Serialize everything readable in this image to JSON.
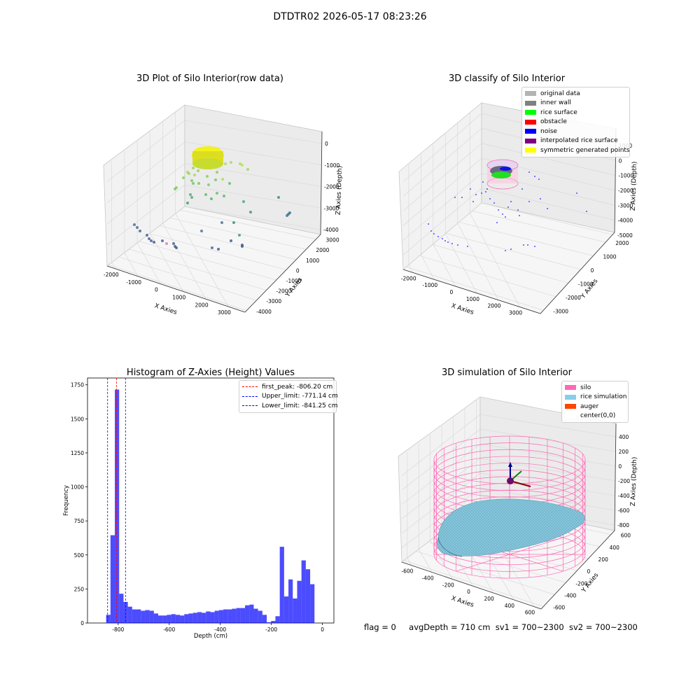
{
  "figure": {
    "title": "DTDTR02 2026-05-17 08:23:26",
    "status": {
      "flag": "flag = 0",
      "avg_depth": "avgDepth = 710 cm",
      "sv1": "sv1 = 700~2300",
      "sv2": "sv2 = 700~2300"
    }
  },
  "chart_data": [
    {
      "type": "scatter3d",
      "title": "3D Plot of Silo Interior(row data)",
      "xlabel": "X Axies",
      "ylabel": "Y Axies",
      "zlabel": "Z Axies (Depth)",
      "x_ticks": [
        "-2000",
        "-1000",
        "0",
        "1000",
        "2000",
        "3000"
      ],
      "y_ticks": [
        "3000",
        "2000",
        "1000",
        "0",
        "-1000",
        "-2000",
        "-3000",
        "-4000"
      ],
      "z_ticks": [
        "0",
        "-1000",
        "-2000",
        "-3000",
        "-4000"
      ],
      "xlim": [
        -2400,
        3500
      ],
      "ylim": [
        -4000,
        3200
      ],
      "zlim": [
        -4500,
        0
      ],
      "grid": true,
      "colormap": "viridis (by depth)"
    },
    {
      "type": "scatter3d",
      "title": "3D classify of Silo Interior",
      "xlabel": "X Axies",
      "ylabel": "Y Axies",
      "zlabel": "Z Axies (Depth)",
      "x_ticks": [
        "-2000",
        "-1000",
        "0",
        "1000",
        "2000",
        "3000"
      ],
      "y_ticks": [
        "2000",
        "1000",
        "0",
        "-1000",
        "-2000",
        "-3000"
      ],
      "z_ticks": [
        "1000",
        "0",
        "-1000",
        "-2000",
        "-3000",
        "-4000",
        "-5000"
      ],
      "legend": [
        {
          "label": "original data",
          "color": "#b3b3b3"
        },
        {
          "label": "inner wall",
          "color": "#808080"
        },
        {
          "label": "rice surface",
          "color": "#00ff00"
        },
        {
          "label": "obstacle",
          "color": "#ff0000"
        },
        {
          "label": "noise",
          "color": "#0000ff"
        },
        {
          "label": "interpolated rice surface",
          "color": "#800080"
        },
        {
          "label": "symmetric generated points",
          "color": "#ffff00"
        }
      ],
      "legend_position": "top-right",
      "grid": true
    },
    {
      "type": "bar",
      "title": "Histogram of Z-Axies (Height) Values",
      "xlabel": "Depth (cm)",
      "ylabel": "Frequency",
      "xlim": [
        -920,
        45
      ],
      "ylim": [
        0,
        1800
      ],
      "x_ticks": [
        -800,
        -600,
        -400,
        -200,
        0
      ],
      "y_ticks": [
        0,
        250,
        500,
        750,
        1000,
        1250,
        1500,
        1750
      ],
      "bar_color": "#0000ff",
      "bin_width": 17,
      "bin_starts": [
        -847,
        -830,
        -813,
        -796,
        -779,
        -762,
        -745,
        -728,
        -711,
        -694,
        -677,
        -660,
        -643,
        -626,
        -609,
        -592,
        -575,
        -558,
        -541,
        -524,
        -507,
        -490,
        -473,
        -456,
        -439,
        -422,
        -405,
        -388,
        -371,
        -354,
        -337,
        -320,
        -303,
        -286,
        -269,
        -252,
        -235,
        -218,
        -201,
        -184,
        -167,
        -150,
        -133,
        -116,
        -99,
        -82,
        -65,
        -48,
        -31,
        -14
      ],
      "counts": [
        60,
        645,
        1715,
        215,
        155,
        120,
        100,
        100,
        90,
        95,
        90,
        70,
        55,
        55,
        60,
        65,
        60,
        55,
        65,
        70,
        75,
        80,
        75,
        85,
        80,
        90,
        95,
        100,
        100,
        105,
        110,
        110,
        130,
        135,
        105,
        90,
        60,
        5,
        15,
        50,
        560,
        195,
        320,
        180,
        310,
        460,
        395,
        285,
        0,
        0
      ],
      "lines": [
        {
          "label": "first_peak: -806.20 cm",
          "value": -806.2,
          "color": "#ff0000"
        },
        {
          "label": "Upper_limit: -771.14 cm",
          "value": -771.14,
          "color": "#0000ff"
        },
        {
          "label": "Lower_limit: -841.25 cm",
          "value": -841.25,
          "color": "#0000ff"
        }
      ],
      "legend_position": "top-right"
    },
    {
      "type": "surface3d",
      "title": "3D simulation of Silo Interior",
      "xlabel": "X Axies",
      "ylabel": "Y Axies",
      "zlabel": "Z Axies (Depth)",
      "x_ticks": [
        "-600",
        "-400",
        "-200",
        "0",
        "200",
        "400",
        "600"
      ],
      "y_ticks": [
        "600",
        "400",
        "200",
        "0",
        "-200",
        "-400",
        "-600"
      ],
      "z_ticks": [
        "400",
        "200",
        "0",
        "-200",
        "-400",
        "-600",
        "-800"
      ],
      "legend": [
        {
          "label": "silo",
          "color": "#ff69b4"
        },
        {
          "label": "rice simulation",
          "color": "#87ceeb"
        },
        {
          "label": "auger",
          "color": "#ff4500"
        },
        {
          "label": "center(0,0)",
          "color": "#ffffff"
        }
      ],
      "legend_position": "top-right",
      "grid": true
    }
  ]
}
